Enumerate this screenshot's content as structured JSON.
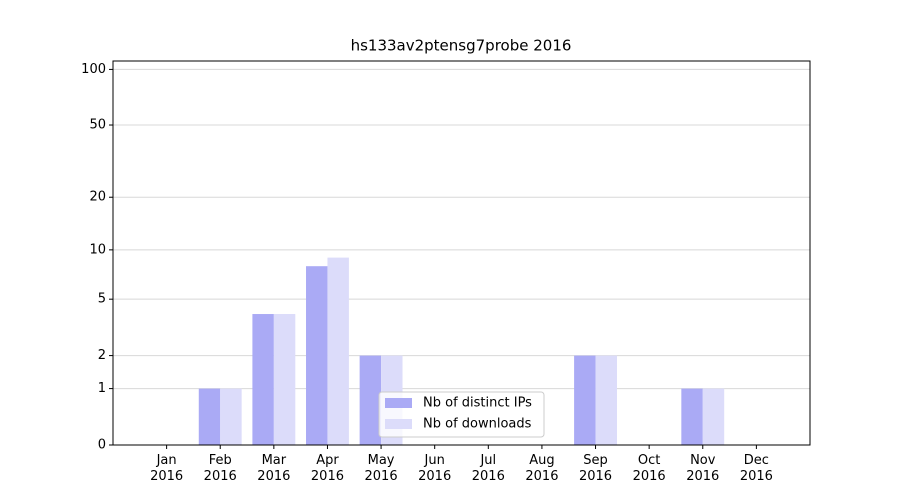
{
  "chart_data": {
    "type": "bar",
    "title": "hs133av2ptensg7probe 2016",
    "categories": [
      "Jan 2016",
      "Feb 2016",
      "Mar 2016",
      "Apr 2016",
      "May 2016",
      "Jun 2016",
      "Jul 2016",
      "Aug 2016",
      "Sep 2016",
      "Oct 2016",
      "Nov 2016",
      "Dec 2016"
    ],
    "series": [
      {
        "name": "Nb of distinct IPs",
        "color": "#aaaaf5",
        "values": [
          0,
          1,
          4,
          8,
          2,
          0,
          0,
          0,
          2,
          0,
          1,
          0
        ]
      },
      {
        "name": "Nb of downloads",
        "color": "#dcdcfa",
        "values": [
          0,
          1,
          4,
          9,
          2,
          0,
          0,
          0,
          2,
          0,
          1,
          0
        ]
      }
    ],
    "yscale": "log1p",
    "ylim": [
      0,
      111
    ],
    "yticks": [
      0,
      1,
      2,
      5,
      10,
      20,
      50,
      100
    ],
    "grid": true,
    "legend": "lower center"
  }
}
